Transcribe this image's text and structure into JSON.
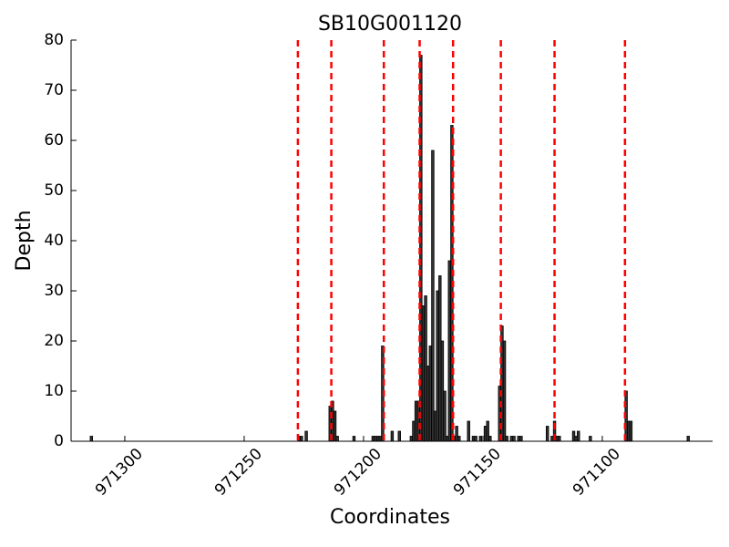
{
  "chart_data": {
    "type": "bar",
    "title": "SB10G001120",
    "xlabel": "Coordinates",
    "ylabel": "Depth",
    "x": [
      971314,
      971227,
      971226,
      971224,
      971214,
      971213,
      971212,
      971211,
      971204,
      971196,
      971195,
      971194,
      971193,
      971192,
      971188,
      971185,
      971180,
      971179,
      971178,
      971177,
      971176,
      971175,
      971174,
      971173,
      971172,
      971171,
      971170,
      971169,
      971168,
      971167,
      971166,
      971165,
      971164,
      971163,
      971162,
      971161,
      971160,
      971156,
      971154,
      971153,
      971151,
      971149,
      971148,
      971147,
      971143,
      971142,
      971141,
      971140,
      971138,
      971137,
      971135,
      971134,
      971123,
      971121,
      971120,
      971119,
      971118,
      971112,
      971111,
      971110,
      971105,
      971090,
      971089,
      971088,
      971064
    ],
    "values": [
      1,
      1,
      1,
      2,
      7,
      8,
      6,
      1,
      1,
      1,
      1,
      1,
      1,
      19,
      2,
      2,
      1,
      4,
      8,
      8,
      77,
      27,
      29,
      15,
      19,
      58,
      6,
      30,
      33,
      20,
      10,
      1,
      36,
      63,
      1,
      3,
      1,
      4,
      1,
      1,
      1,
      3,
      4,
      1,
      11,
      23,
      20,
      1,
      1,
      1,
      1,
      1,
      3,
      1,
      4,
      1,
      1,
      2,
      1,
      2,
      1,
      10,
      4,
      4,
      1
    ],
    "color": "#333333",
    "vlines": [
      971227.5,
      971213.5,
      971191.5,
      971176.5,
      971162.5,
      971142.5,
      971120,
      971090.5
    ],
    "vline_color": "#ff0000",
    "xlim": [
      971322.5,
      971053.8
    ],
    "xticks": [
      971300,
      971250,
      971200,
      971150,
      971100
    ],
    "ylim": [
      0,
      80
    ],
    "yticks": [
      0,
      10,
      20,
      30,
      40,
      50,
      60,
      70,
      80
    ]
  }
}
